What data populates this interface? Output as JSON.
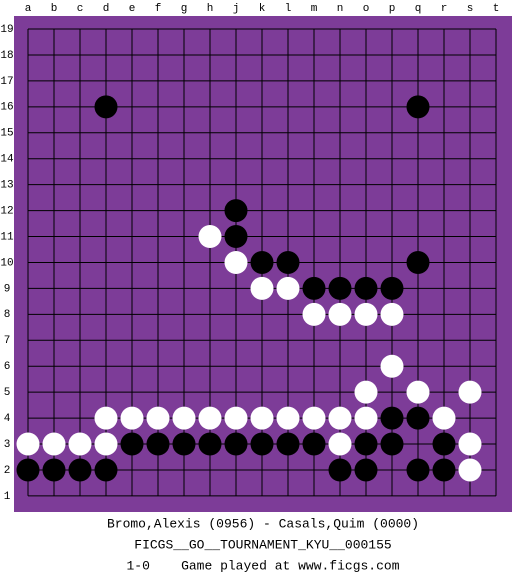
{
  "board": {
    "columns": [
      "a",
      "b",
      "c",
      "d",
      "e",
      "f",
      "g",
      "h",
      "j",
      "k",
      "l",
      "m",
      "n",
      "o",
      "p",
      "q",
      "r",
      "s",
      "t"
    ],
    "rows": [
      19,
      18,
      17,
      16,
      15,
      14,
      13,
      12,
      11,
      10,
      9,
      8,
      7,
      6,
      5,
      4,
      3,
      2,
      1
    ],
    "stones": [
      {
        "col": "d",
        "row": 16,
        "color": "black"
      },
      {
        "col": "q",
        "row": 16,
        "color": "black"
      },
      {
        "col": "j",
        "row": 12,
        "color": "black"
      },
      {
        "col": "h",
        "row": 11,
        "color": "white"
      },
      {
        "col": "j",
        "row": 11,
        "color": "black"
      },
      {
        "col": "j",
        "row": 10,
        "color": "white"
      },
      {
        "col": "k",
        "row": 10,
        "color": "black"
      },
      {
        "col": "l",
        "row": 10,
        "color": "black"
      },
      {
        "col": "q",
        "row": 10,
        "color": "black"
      },
      {
        "col": "k",
        "row": 9,
        "color": "white"
      },
      {
        "col": "l",
        "row": 9,
        "color": "white"
      },
      {
        "col": "m",
        "row": 9,
        "color": "black"
      },
      {
        "col": "n",
        "row": 9,
        "color": "black"
      },
      {
        "col": "o",
        "row": 9,
        "color": "black"
      },
      {
        "col": "p",
        "row": 9,
        "color": "black"
      },
      {
        "col": "m",
        "row": 8,
        "color": "white"
      },
      {
        "col": "n",
        "row": 8,
        "color": "white"
      },
      {
        "col": "o",
        "row": 8,
        "color": "white"
      },
      {
        "col": "p",
        "row": 8,
        "color": "white"
      },
      {
        "col": "p",
        "row": 6,
        "color": "white"
      },
      {
        "col": "o",
        "row": 5,
        "color": "white"
      },
      {
        "col": "q",
        "row": 5,
        "color": "white"
      },
      {
        "col": "s",
        "row": 5,
        "color": "white"
      },
      {
        "col": "d",
        "row": 4,
        "color": "white"
      },
      {
        "col": "e",
        "row": 4,
        "color": "white"
      },
      {
        "col": "f",
        "row": 4,
        "color": "white"
      },
      {
        "col": "g",
        "row": 4,
        "color": "white"
      },
      {
        "col": "h",
        "row": 4,
        "color": "white"
      },
      {
        "col": "j",
        "row": 4,
        "color": "white"
      },
      {
        "col": "k",
        "row": 4,
        "color": "white"
      },
      {
        "col": "l",
        "row": 4,
        "color": "white"
      },
      {
        "col": "m",
        "row": 4,
        "color": "white"
      },
      {
        "col": "n",
        "row": 4,
        "color": "white"
      },
      {
        "col": "o",
        "row": 4,
        "color": "white"
      },
      {
        "col": "p",
        "row": 4,
        "color": "black"
      },
      {
        "col": "q",
        "row": 4,
        "color": "black"
      },
      {
        "col": "r",
        "row": 4,
        "color": "white"
      },
      {
        "col": "a",
        "row": 3,
        "color": "white"
      },
      {
        "col": "b",
        "row": 3,
        "color": "white"
      },
      {
        "col": "c",
        "row": 3,
        "color": "white"
      },
      {
        "col": "d",
        "row": 3,
        "color": "white"
      },
      {
        "col": "e",
        "row": 3,
        "color": "black"
      },
      {
        "col": "f",
        "row": 3,
        "color": "black"
      },
      {
        "col": "g",
        "row": 3,
        "color": "black"
      },
      {
        "col": "h",
        "row": 3,
        "color": "black"
      },
      {
        "col": "j",
        "row": 3,
        "color": "black"
      },
      {
        "col": "k",
        "row": 3,
        "color": "black"
      },
      {
        "col": "l",
        "row": 3,
        "color": "black"
      },
      {
        "col": "m",
        "row": 3,
        "color": "black"
      },
      {
        "col": "n",
        "row": 3,
        "color": "white"
      },
      {
        "col": "o",
        "row": 3,
        "color": "black"
      },
      {
        "col": "p",
        "row": 3,
        "color": "black"
      },
      {
        "col": "r",
        "row": 3,
        "color": "black"
      },
      {
        "col": "s",
        "row": 3,
        "color": "white"
      },
      {
        "col": "a",
        "row": 2,
        "color": "black"
      },
      {
        "col": "b",
        "row": 2,
        "color": "black"
      },
      {
        "col": "c",
        "row": 2,
        "color": "black"
      },
      {
        "col": "d",
        "row": 2,
        "color": "black"
      },
      {
        "col": "n",
        "row": 2,
        "color": "black"
      },
      {
        "col": "o",
        "row": 2,
        "color": "black"
      },
      {
        "col": "q",
        "row": 2,
        "color": "black"
      },
      {
        "col": "r",
        "row": 2,
        "color": "black"
      },
      {
        "col": "s",
        "row": 2,
        "color": "white"
      }
    ]
  },
  "caption": {
    "players": "Bromo,Alexis (0956) - Casals,Quim (0000)",
    "event": "FICGS__GO__TOURNAMENT_KYU__000155",
    "result": "1-0    Game played at www.ficgs.com"
  }
}
